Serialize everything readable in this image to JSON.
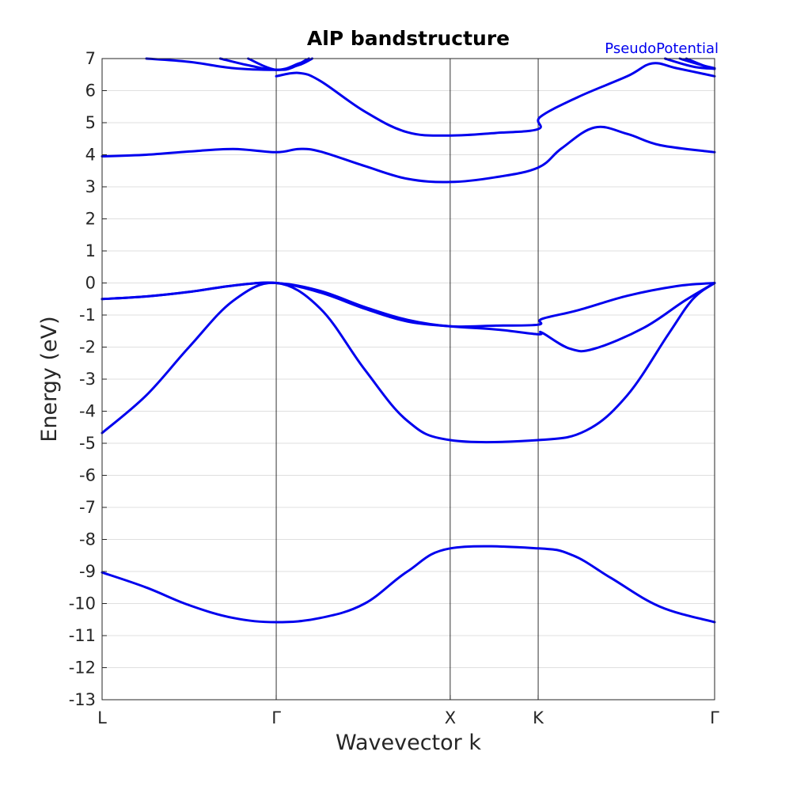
{
  "chart_data": {
    "type": "line",
    "title": "AlP bandstructure",
    "xlabel": "Wavevector k",
    "ylabel": "Energy (eV)",
    "annotation": "PseudoPotential",
    "ylim": [
      -13,
      7
    ],
    "xlim": [
      0,
      3.732
    ],
    "yticks": [
      7,
      6,
      5,
      4,
      3,
      2,
      1,
      0,
      -1,
      -2,
      -3,
      -4,
      -5,
      -6,
      -7,
      -8,
      -9,
      -10,
      -11,
      -12,
      -13
    ],
    "xticks": [
      {
        "label": "L",
        "x": 0.0
      },
      {
        "label": "Γ",
        "x": 1.061
      },
      {
        "label": "X",
        "x": 2.121
      },
      {
        "label": "K",
        "x": 2.657
      },
      {
        "label": "Γ",
        "x": 3.732
      }
    ],
    "grid": true,
    "line_color": "#0000ee",
    "series": [
      {
        "points": [
          [
            0,
            -9.03
          ],
          [
            0.27,
            -9.5
          ],
          [
            0.53,
            -10.05
          ],
          [
            0.8,
            -10.45
          ],
          [
            1.061,
            -10.58
          ],
          [
            1.33,
            -10.45
          ],
          [
            1.6,
            -10.0
          ],
          [
            1.86,
            -9.0
          ],
          [
            2.121,
            -8.28
          ],
          [
            2.657,
            -8.28
          ],
          [
            2.87,
            -8.5
          ],
          [
            3.1,
            -9.2
          ],
          [
            3.4,
            -10.1
          ],
          [
            3.732,
            -10.58
          ]
        ]
      },
      {
        "points": [
          [
            0,
            -4.68
          ],
          [
            0.27,
            -3.5
          ],
          [
            0.53,
            -2.0
          ],
          [
            0.8,
            -0.55
          ],
          [
            1.061,
            0
          ],
          [
            1.33,
            -0.8
          ],
          [
            1.6,
            -2.7
          ],
          [
            1.86,
            -4.3
          ],
          [
            2.121,
            -4.9
          ],
          [
            2.657,
            -4.9
          ],
          [
            2.95,
            -4.6
          ],
          [
            3.2,
            -3.5
          ],
          [
            3.45,
            -1.6
          ],
          [
            3.6,
            -0.5
          ],
          [
            3.732,
            0
          ]
        ]
      },
      {
        "points": [
          [
            0,
            -0.5
          ],
          [
            0.27,
            -0.42
          ],
          [
            0.53,
            -0.28
          ],
          [
            0.8,
            -0.08
          ],
          [
            1.061,
            0
          ],
          [
            1.33,
            -0.3
          ],
          [
            1.6,
            -0.8
          ],
          [
            1.86,
            -1.2
          ],
          [
            2.121,
            -1.35
          ],
          [
            2.4,
            -1.45
          ],
          [
            2.657,
            -1.6
          ],
          [
            2.68,
            -1.55
          ],
          [
            2.85,
            -2.05
          ],
          [
            3.0,
            -2.05
          ],
          [
            3.3,
            -1.4
          ],
          [
            3.55,
            -0.55
          ],
          [
            3.732,
            0
          ]
        ]
      },
      {
        "points": [
          [
            0,
            -0.5
          ],
          [
            0.27,
            -0.42
          ],
          [
            0.53,
            -0.28
          ],
          [
            0.8,
            -0.08
          ],
          [
            1.061,
            0
          ],
          [
            1.33,
            -0.25
          ],
          [
            1.6,
            -0.75
          ],
          [
            1.86,
            -1.15
          ],
          [
            2.121,
            -1.35
          ],
          [
            2.4,
            -1.33
          ],
          [
            2.657,
            -1.3
          ],
          [
            2.68,
            -1.12
          ],
          [
            2.9,
            -0.85
          ],
          [
            3.2,
            -0.4
          ],
          [
            3.5,
            -0.1
          ],
          [
            3.732,
            0
          ]
        ]
      },
      {
        "points": [
          [
            0,
            3.95
          ],
          [
            0.27,
            4.0
          ],
          [
            0.53,
            4.1
          ],
          [
            0.8,
            4.18
          ],
          [
            1.061,
            4.08
          ],
          [
            1.2,
            4.18
          ],
          [
            1.33,
            4.1
          ],
          [
            1.6,
            3.65
          ],
          [
            1.86,
            3.25
          ],
          [
            2.121,
            3.15
          ],
          [
            2.4,
            3.3
          ],
          [
            2.657,
            3.6
          ],
          [
            2.8,
            4.2
          ],
          [
            3.0,
            4.85
          ],
          [
            3.2,
            4.65
          ],
          [
            3.4,
            4.3
          ],
          [
            3.732,
            4.08
          ]
        ]
      },
      {
        "points": [
          [
            1.061,
            6.45
          ],
          [
            1.2,
            6.55
          ],
          [
            1.33,
            6.3
          ],
          [
            1.6,
            5.35
          ],
          [
            1.86,
            4.7
          ],
          [
            2.121,
            4.6
          ],
          [
            2.4,
            4.68
          ],
          [
            2.657,
            4.8
          ],
          [
            2.67,
            5.18
          ],
          [
            2.9,
            5.8
          ],
          [
            3.2,
            6.45
          ],
          [
            3.35,
            6.85
          ],
          [
            3.5,
            6.7
          ],
          [
            3.732,
            6.45
          ]
        ]
      },
      {
        "points": [
          [
            0.27,
            7.0
          ],
          [
            0.53,
            6.9
          ],
          [
            0.8,
            6.7
          ],
          [
            1.061,
            6.65
          ],
          [
            1.15,
            6.7
          ],
          [
            1.24,
            6.95
          ]
        ]
      },
      {
        "points": [
          [
            0.72,
            7.0
          ],
          [
            0.9,
            6.78
          ],
          [
            1.061,
            6.65
          ],
          [
            1.2,
            6.8
          ],
          [
            1.28,
            7.0
          ]
        ]
      },
      {
        "points": [
          [
            0.89,
            7.0
          ],
          [
            1.061,
            6.65
          ],
          [
            1.2,
            6.85
          ],
          [
            1.26,
            7.0
          ]
        ]
      },
      {
        "points": [
          [
            3.43,
            7.0
          ],
          [
            3.6,
            6.75
          ],
          [
            3.732,
            6.68
          ]
        ]
      },
      {
        "points": [
          [
            3.52,
            7.0
          ],
          [
            3.65,
            6.8
          ],
          [
            3.732,
            6.7
          ]
        ]
      },
      {
        "points": [
          [
            3.56,
            7.0
          ],
          [
            3.68,
            6.75
          ],
          [
            3.732,
            6.68
          ]
        ]
      }
    ]
  }
}
